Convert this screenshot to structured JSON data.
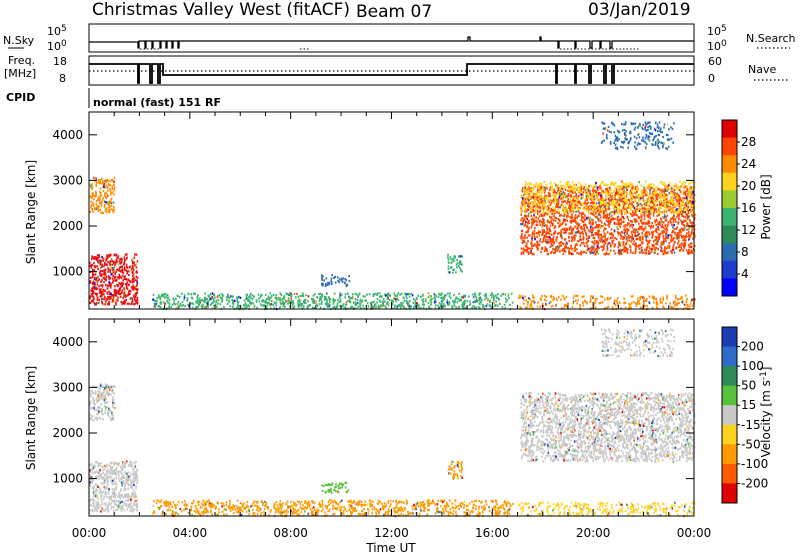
{
  "header": {
    "station": "Christmas Valley West (fitACF)",
    "beam": "Beam 07",
    "date": "03/Jan/2019"
  },
  "sky_panel": {
    "left_label": "N.Sky",
    "right_label": "N.Search",
    "left_ticks": [
      "10^5",
      "10^0"
    ],
    "right_ticks": [
      "10^5",
      "10^0"
    ]
  },
  "freq_panel": {
    "left_label_1": "Freq.",
    "left_label_2": "[MHz]",
    "right_label": "Nave",
    "left_ticks": [
      "18",
      "8"
    ],
    "right_ticks": [
      "60",
      "0"
    ]
  },
  "cpid": {
    "label": "CPID",
    "program": "normal (fast) 151 RF"
  },
  "x_axis": {
    "ticks": [
      "00:00",
      "04:00",
      "08:00",
      "12:00",
      "16:00",
      "20:00",
      "00:00"
    ],
    "label": "Time UT"
  },
  "chart_data": [
    {
      "type": "heatmap",
      "name": "power_panel",
      "ylabel": "Slant Range [km]",
      "ylim": [
        180,
        4500
      ],
      "yticks": [
        1000,
        2000,
        3000,
        4000
      ],
      "xlim_hours": [
        0,
        24
      ],
      "colorbar": {
        "label": "Power [dB]",
        "ticks": [
          "28",
          "24",
          "20",
          "16",
          "12",
          "8",
          "4"
        ],
        "colors": [
          "#e00000",
          "#ff4500",
          "#ff8c00",
          "#ffd21e",
          "#9acd32",
          "#3cb371",
          "#2e8b57",
          "#2b6cb0",
          "#1e3ccf",
          "#0000ff"
        ]
      },
      "regions": [
        {
          "t0": 0.0,
          "t1": 1.9,
          "r0": 300,
          "r1": 1400,
          "color": "#e81010",
          "density": 0.85
        },
        {
          "t0": 0.0,
          "t1": 1.0,
          "r0": 2300,
          "r1": 3100,
          "color": "#ff8c00",
          "density": 0.7
        },
        {
          "t0": 2.5,
          "t1": 16.8,
          "r0": 200,
          "r1": 550,
          "color": "#3cb371",
          "density": 0.6
        },
        {
          "t0": 9.2,
          "t1": 10.3,
          "r0": 700,
          "r1": 950,
          "color": "#2b6cb0",
          "density": 0.5
        },
        {
          "t0": 14.2,
          "t1": 14.8,
          "r0": 1000,
          "r1": 1400,
          "color": "#3cb371",
          "density": 0.6
        },
        {
          "t0": 17.1,
          "t1": 24.0,
          "r0": 1400,
          "r1": 2900,
          "color": "#ff4500",
          "density": 0.75
        },
        {
          "t0": 17.1,
          "t1": 24.0,
          "r0": 2300,
          "r1": 3000,
          "color": "#ffd21e",
          "density": 0.5
        },
        {
          "t0": 17.0,
          "t1": 24.0,
          "r0": 200,
          "r1": 500,
          "color": "#ff8c00",
          "density": 0.4
        },
        {
          "t0": 20.3,
          "t1": 23.2,
          "r0": 3700,
          "r1": 4300,
          "color": "#2b6cb0",
          "density": 0.35
        }
      ]
    },
    {
      "type": "heatmap",
      "name": "velocity_panel",
      "ylabel": "Slant Range [km]",
      "ylim": [
        180,
        4500
      ],
      "yticks": [
        1000,
        2000,
        3000,
        4000
      ],
      "xlim_hours": [
        0,
        24
      ],
      "colorbar": {
        "label": "Velocity [m s^-1]",
        "ticks": [
          "200",
          "100",
          "50",
          "15",
          "-15",
          "-50",
          "-100",
          "-200"
        ],
        "colors": [
          "#1e3cb4",
          "#2e6cc8",
          "#2e8b57",
          "#55c23a",
          "#c8c8c8",
          "#ffd21e",
          "#ff9a00",
          "#ff5a00",
          "#e00000"
        ]
      },
      "regions": [
        {
          "t0": 0.0,
          "t1": 1.9,
          "r0": 300,
          "r1": 1400,
          "color": "#c8c8c8",
          "density": 0.8
        },
        {
          "t0": 0.0,
          "t1": 1.0,
          "r0": 2300,
          "r1": 3100,
          "color": "#c8c8c8",
          "density": 0.7
        },
        {
          "t0": 2.5,
          "t1": 16.8,
          "r0": 200,
          "r1": 550,
          "color": "#ff9a00",
          "density": 0.55
        },
        {
          "t0": 9.2,
          "t1": 10.3,
          "r0": 700,
          "r1": 950,
          "color": "#55c23a",
          "density": 0.5
        },
        {
          "t0": 14.2,
          "t1": 14.8,
          "r0": 1000,
          "r1": 1400,
          "color": "#ff9a00",
          "density": 0.6
        },
        {
          "t0": 17.1,
          "t1": 24.0,
          "r0": 1400,
          "r1": 2900,
          "color": "#c8c8c8",
          "density": 0.75
        },
        {
          "t0": 17.0,
          "t1": 24.0,
          "r0": 200,
          "r1": 500,
          "color": "#ffd21e",
          "density": 0.4
        },
        {
          "t0": 20.3,
          "t1": 23.2,
          "r0": 3700,
          "r1": 4300,
          "color": "#c8c8c8",
          "density": 0.35
        }
      ]
    }
  ]
}
